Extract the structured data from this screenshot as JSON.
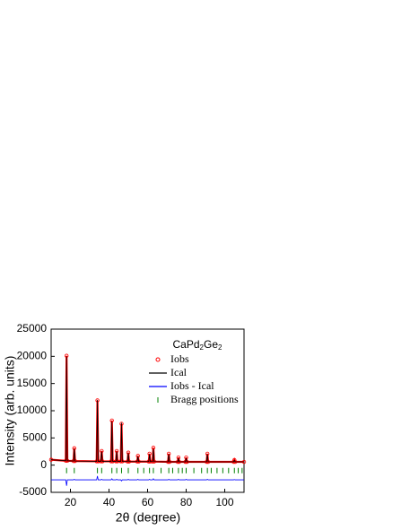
{
  "chart_data": {
    "type": "line",
    "sample_label": [
      "CaPd",
      "2",
      "Ge",
      "2"
    ],
    "x_label": "2θ (degree)",
    "y_label": "Intensity (arb. units)",
    "xlim": [
      10,
      110
    ],
    "ylim": [
      -5000,
      25000
    ],
    "xticks": [
      20,
      40,
      60,
      80,
      100
    ],
    "yticks": [
      -5000,
      0,
      5000,
      10000,
      15000,
      20000,
      25000
    ],
    "legend": "upper right",
    "x": [
      10,
      17.6,
      18,
      18.4,
      21.6,
      22,
      22.4,
      33.6,
      34,
      34.4,
      35.8,
      36.2,
      36.6,
      41.1,
      41.5,
      41.9,
      43.6,
      44,
      44.4,
      46.1,
      46.5,
      46.9,
      49.6,
      50,
      50.4,
      54.6,
      55,
      55.4,
      60.6,
      61,
      61.4,
      62.6,
      63,
      63.4,
      70.6,
      71,
      71.4,
      75.6,
      76,
      76.4,
      79.6,
      80,
      80.4,
      90.6,
      91,
      91.4,
      104.6,
      105,
      105.4,
      110
    ],
    "series": [
      {
        "name": "Iobs",
        "color": "#ff0000",
        "marker": "circle",
        "values": [
          1000,
          800,
          20100,
          800,
          750,
          3100,
          750,
          700,
          11900,
          700,
          700,
          2600,
          700,
          700,
          8200,
          700,
          700,
          2600,
          700,
          700,
          7600,
          700,
          650,
          2300,
          650,
          650,
          1700,
          650,
          650,
          2100,
          650,
          650,
          3200,
          650,
          600,
          2100,
          600,
          600,
          1400,
          600,
          600,
          1400,
          600,
          600,
          2100,
          600,
          600,
          950,
          600,
          600
        ]
      },
      {
        "name": "Ical",
        "color": "#000000",
        "marker": "line",
        "values": [
          1000,
          800,
          20000,
          800,
          750,
          3000,
          750,
          700,
          12000,
          700,
          700,
          2500,
          700,
          700,
          8000,
          700,
          700,
          2500,
          700,
          700,
          7800,
          700,
          650,
          2200,
          650,
          650,
          1600,
          650,
          650,
          2000,
          650,
          650,
          3000,
          650,
          600,
          2000,
          600,
          600,
          1300,
          600,
          600,
          1300,
          600,
          600,
          2000,
          600,
          600,
          900,
          600,
          600
        ]
      },
      {
        "name": "Iobs - Ical",
        "color": "#0000ff",
        "marker": "line",
        "values": [
          -2700,
          -2700,
          -3800,
          -2700,
          -2700,
          -2600,
          -2700,
          -2700,
          -2000,
          -2700,
          -2700,
          -2600,
          -2700,
          -2700,
          -2500,
          -2700,
          -2700,
          -2600,
          -2700,
          -2700,
          -2900,
          -2700,
          -2700,
          -2600,
          -2700,
          -2700,
          -2600,
          -2700,
          -2700,
          -2600,
          -2700,
          -2700,
          -2500,
          -2700,
          -2700,
          -2600,
          -2700,
          -2700,
          -2600,
          -2700,
          -2700,
          -2600,
          -2700,
          -2700,
          -2600,
          -2700,
          -2700,
          -2650,
          -2700,
          -2700
        ]
      },
      {
        "name": "Bragg positions",
        "color": "#008000",
        "marker": "tick",
        "x": [
          18,
          22,
          34,
          36.2,
          41.5,
          44,
          46.5,
          50,
          55,
          58,
          61,
          63,
          67,
          71,
          73,
          76,
          78,
          80,
          84,
          88,
          91,
          93,
          96,
          99,
          102,
          105,
          107,
          109
        ],
        "values": [
          -1000,
          -1000,
          -1000,
          -1000,
          -1000,
          -1000,
          -1000,
          -1000,
          -1000,
          -1000,
          -1000,
          -1000,
          -1000,
          -1000,
          -1000,
          -1000,
          -1000,
          -1000,
          -1000,
          -1000,
          -1000,
          -1000,
          -1000,
          -1000,
          -1000,
          -1000,
          -1000,
          -1000
        ]
      }
    ]
  }
}
